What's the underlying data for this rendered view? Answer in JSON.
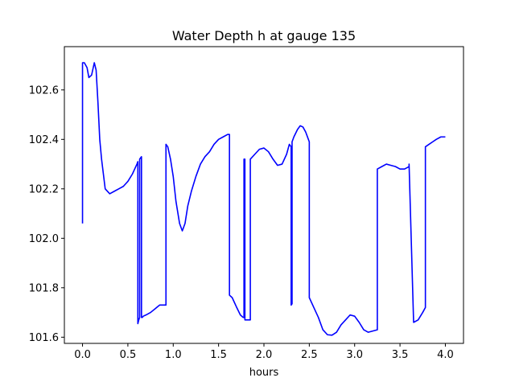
{
  "chart_data": {
    "type": "line",
    "title": "Water Depth h at gauge 135",
    "xlabel": "hours",
    "ylabel": "",
    "xlim": [
      -0.2,
      4.2
    ],
    "ylim": [
      101.575,
      102.775
    ],
    "xticks": [
      0.0,
      0.5,
      1.0,
      1.5,
      2.0,
      2.5,
      3.0,
      3.5,
      4.0
    ],
    "xtick_labels": [
      "0.0",
      "0.5",
      "1.0",
      "1.5",
      "2.0",
      "2.5",
      "3.0",
      "3.5",
      "4.0"
    ],
    "yticks": [
      101.6,
      101.8,
      102.0,
      102.2,
      102.4,
      102.6
    ],
    "ytick_labels": [
      "101.6",
      "101.8",
      "102.0",
      "102.2",
      "102.4",
      "102.6"
    ],
    "grid": false,
    "legend": null,
    "series": [
      {
        "color": "#0000ff",
        "x": [
          0.0,
          0.0,
          0.02,
          0.05,
          0.07,
          0.1,
          0.13,
          0.15,
          0.17,
          0.19,
          0.21,
          0.25,
          0.3,
          0.35,
          0.4,
          0.45,
          0.5,
          0.55,
          0.6,
          0.61,
          0.61,
          0.62,
          0.63,
          0.63,
          0.65,
          0.65,
          0.66,
          0.67,
          0.7,
          0.75,
          0.8,
          0.85,
          0.9,
          0.92,
          0.92,
          0.94,
          0.97,
          1.0,
          1.03,
          1.07,
          1.1,
          1.13,
          1.16,
          1.2,
          1.25,
          1.3,
          1.35,
          1.4,
          1.45,
          1.5,
          1.55,
          1.6,
          1.62,
          1.62,
          1.65,
          1.7,
          1.74,
          1.77,
          1.78,
          1.78,
          1.79,
          1.79,
          1.8,
          1.85,
          1.85,
          1.9,
          1.95,
          2.0,
          2.05,
          2.1,
          2.15,
          2.2,
          2.25,
          2.28,
          2.3,
          2.3,
          2.31,
          2.31,
          2.33,
          2.37,
          2.4,
          2.43,
          2.46,
          2.49,
          2.5,
          2.5,
          2.55,
          2.6,
          2.65,
          2.7,
          2.75,
          2.8,
          2.85,
          2.9,
          2.95,
          3.0,
          3.05,
          3.1,
          3.15,
          3.2,
          3.25,
          3.25,
          3.3,
          3.35,
          3.4,
          3.45,
          3.5,
          3.55,
          3.6,
          3.6,
          3.65,
          3.7,
          3.75,
          3.78,
          3.78,
          3.82,
          3.86,
          3.9,
          3.95,
          4.0
        ],
        "y": [
          102.06,
          102.71,
          102.71,
          102.69,
          102.65,
          102.66,
          102.71,
          102.68,
          102.55,
          102.4,
          102.32,
          102.2,
          102.18,
          102.19,
          102.2,
          102.21,
          102.23,
          102.26,
          102.3,
          102.31,
          101.655,
          101.67,
          101.68,
          102.32,
          102.33,
          101.68,
          101.68,
          101.685,
          101.69,
          101.7,
          101.715,
          101.73,
          101.73,
          101.73,
          102.38,
          102.37,
          102.32,
          102.25,
          102.15,
          102.06,
          102.03,
          102.06,
          102.13,
          102.19,
          102.25,
          102.3,
          102.33,
          102.35,
          102.38,
          102.4,
          102.41,
          102.42,
          102.42,
          101.77,
          101.76,
          101.72,
          101.69,
          101.68,
          101.68,
          102.32,
          102.32,
          101.67,
          101.67,
          101.67,
          102.32,
          102.34,
          102.36,
          102.365,
          102.35,
          102.32,
          102.295,
          102.3,
          102.34,
          102.38,
          102.37,
          101.73,
          101.735,
          102.39,
          102.41,
          102.44,
          102.455,
          102.45,
          102.43,
          102.4,
          102.39,
          101.76,
          101.72,
          101.68,
          101.63,
          101.61,
          101.608,
          101.62,
          101.65,
          101.67,
          101.69,
          101.685,
          101.66,
          101.63,
          101.62,
          101.625,
          101.63,
          102.28,
          102.29,
          102.3,
          102.295,
          102.29,
          102.28,
          102.28,
          102.29,
          102.3,
          101.66,
          101.67,
          101.7,
          101.72,
          102.37,
          102.38,
          102.39,
          102.4,
          102.41,
          102.41
        ]
      }
    ]
  }
}
